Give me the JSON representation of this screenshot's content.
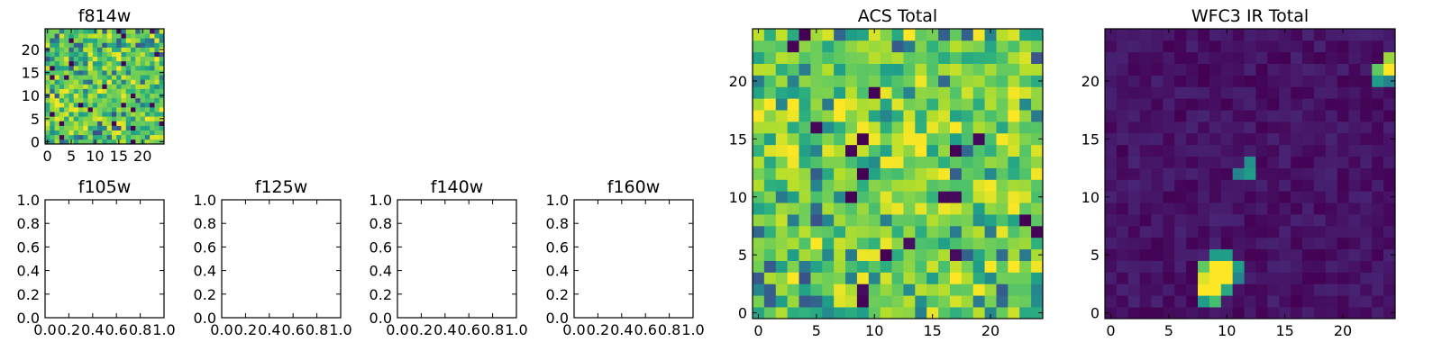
{
  "chart_data": [
    {
      "type": "heatmap",
      "title": "f814w",
      "xticks": [
        0,
        5,
        10,
        15,
        20
      ],
      "yticks": [
        0,
        5,
        10,
        15,
        20
      ],
      "xlim": [
        -0.5,
        24.5
      ],
      "ylim": [
        -0.5,
        24.5
      ],
      "grid_size": [
        25,
        25
      ],
      "colormap": "viridis",
      "value_range": [
        0,
        1
      ],
      "pattern": "noise",
      "seed": 11,
      "noise_weights": [
        0.04,
        0.06,
        0.08,
        0.2,
        0.3,
        0.2,
        0.12
      ],
      "noise_levels": [
        0.0,
        0.3,
        0.45,
        0.6,
        0.75,
        0.85,
        0.95
      ]
    },
    {
      "type": "heatmap",
      "title": "f105w",
      "xticks": [
        "0.0",
        "0.2",
        "0.4",
        "0.6",
        "0.8",
        "1.0"
      ],
      "yticks": [
        "0.0",
        "0.2",
        "0.4",
        "0.6",
        "0.8",
        "1.0"
      ],
      "xlim": [
        0,
        1
      ],
      "ylim": [
        0,
        1
      ],
      "values": []
    },
    {
      "type": "heatmap",
      "title": "f125w",
      "xticks": [
        "0.0",
        "0.2",
        "0.4",
        "0.6",
        "0.8",
        "1.0"
      ],
      "yticks": [
        "0.0",
        "0.2",
        "0.4",
        "0.6",
        "0.8",
        "1.0"
      ],
      "xlim": [
        0,
        1
      ],
      "ylim": [
        0,
        1
      ],
      "values": []
    },
    {
      "type": "heatmap",
      "title": "f140w",
      "xticks": [
        "0.0",
        "0.2",
        "0.4",
        "0.6",
        "0.8",
        "1.0"
      ],
      "yticks": [
        "0.0",
        "0.2",
        "0.4",
        "0.6",
        "0.8",
        "1.0"
      ],
      "xlim": [
        0,
        1
      ],
      "ylim": [
        0,
        1
      ],
      "values": []
    },
    {
      "type": "heatmap",
      "title": "f160w",
      "xticks": [
        "0.0",
        "0.2",
        "0.4",
        "0.6",
        "0.8",
        "1.0"
      ],
      "yticks": [
        "0.0",
        "0.2",
        "0.4",
        "0.6",
        "0.8",
        "1.0"
      ],
      "xlim": [
        0,
        1
      ],
      "ylim": [
        0,
        1
      ],
      "values": []
    },
    {
      "type": "heatmap",
      "title": "ACS Total",
      "xticks": [
        0,
        5,
        10,
        15,
        20
      ],
      "yticks": [
        0,
        5,
        10,
        15,
        20
      ],
      "xlim": [
        -0.5,
        24.5
      ],
      "ylim": [
        -0.5,
        24.5
      ],
      "grid_size": [
        25,
        25
      ],
      "colormap": "viridis",
      "value_range": [
        0,
        1
      ],
      "pattern": "noise",
      "seed": 23,
      "noise_weights": [
        0.03,
        0.04,
        0.06,
        0.15,
        0.3,
        0.27,
        0.15
      ],
      "noise_levels": [
        0.0,
        0.3,
        0.45,
        0.6,
        0.75,
        0.85,
        0.96
      ]
    },
    {
      "type": "heatmap",
      "title": "WFC3 IR Total",
      "xticks": [
        0,
        5,
        10,
        15,
        20
      ],
      "yticks": [
        0,
        5,
        10,
        15,
        20
      ],
      "xlim": [
        -0.5,
        24.5
      ],
      "ylim": [
        -0.5,
        24.5
      ],
      "grid_size": [
        25,
        25
      ],
      "colormap": "viridis",
      "value_range": [
        0,
        1
      ],
      "pattern": "background",
      "seed": 37,
      "background_range": [
        0.0,
        0.1
      ],
      "bright_pixels": [
        {
          "x": 9,
          "y": 5,
          "v": 0.55
        },
        {
          "x": 10,
          "y": 5,
          "v": 0.55
        },
        {
          "x": 8,
          "y": 4,
          "v": 0.75
        },
        {
          "x": 9,
          "y": 4,
          "v": 1.0
        },
        {
          "x": 10,
          "y": 4,
          "v": 1.0
        },
        {
          "x": 11,
          "y": 4,
          "v": 0.55
        },
        {
          "x": 8,
          "y": 3,
          "v": 0.95
        },
        {
          "x": 9,
          "y": 3,
          "v": 1.0
        },
        {
          "x": 10,
          "y": 3,
          "v": 1.0
        },
        {
          "x": 11,
          "y": 3,
          "v": 0.45
        },
        {
          "x": 8,
          "y": 2,
          "v": 1.0
        },
        {
          "x": 9,
          "y": 2,
          "v": 1.0
        },
        {
          "x": 10,
          "y": 2,
          "v": 0.6
        },
        {
          "x": 8,
          "y": 1,
          "v": 0.55
        },
        {
          "x": 9,
          "y": 1,
          "v": 0.7
        },
        {
          "x": 11,
          "y": 12,
          "v": 0.45
        },
        {
          "x": 12,
          "y": 12,
          "v": 0.55
        },
        {
          "x": 12,
          "y": 13,
          "v": 0.5
        },
        {
          "x": 24,
          "y": 22,
          "v": 0.85
        },
        {
          "x": 23,
          "y": 21,
          "v": 0.75
        },
        {
          "x": 24,
          "y": 21,
          "v": 1.0
        },
        {
          "x": 23,
          "y": 20,
          "v": 0.55
        },
        {
          "x": 24,
          "y": 20,
          "v": 0.45
        }
      ]
    }
  ]
}
